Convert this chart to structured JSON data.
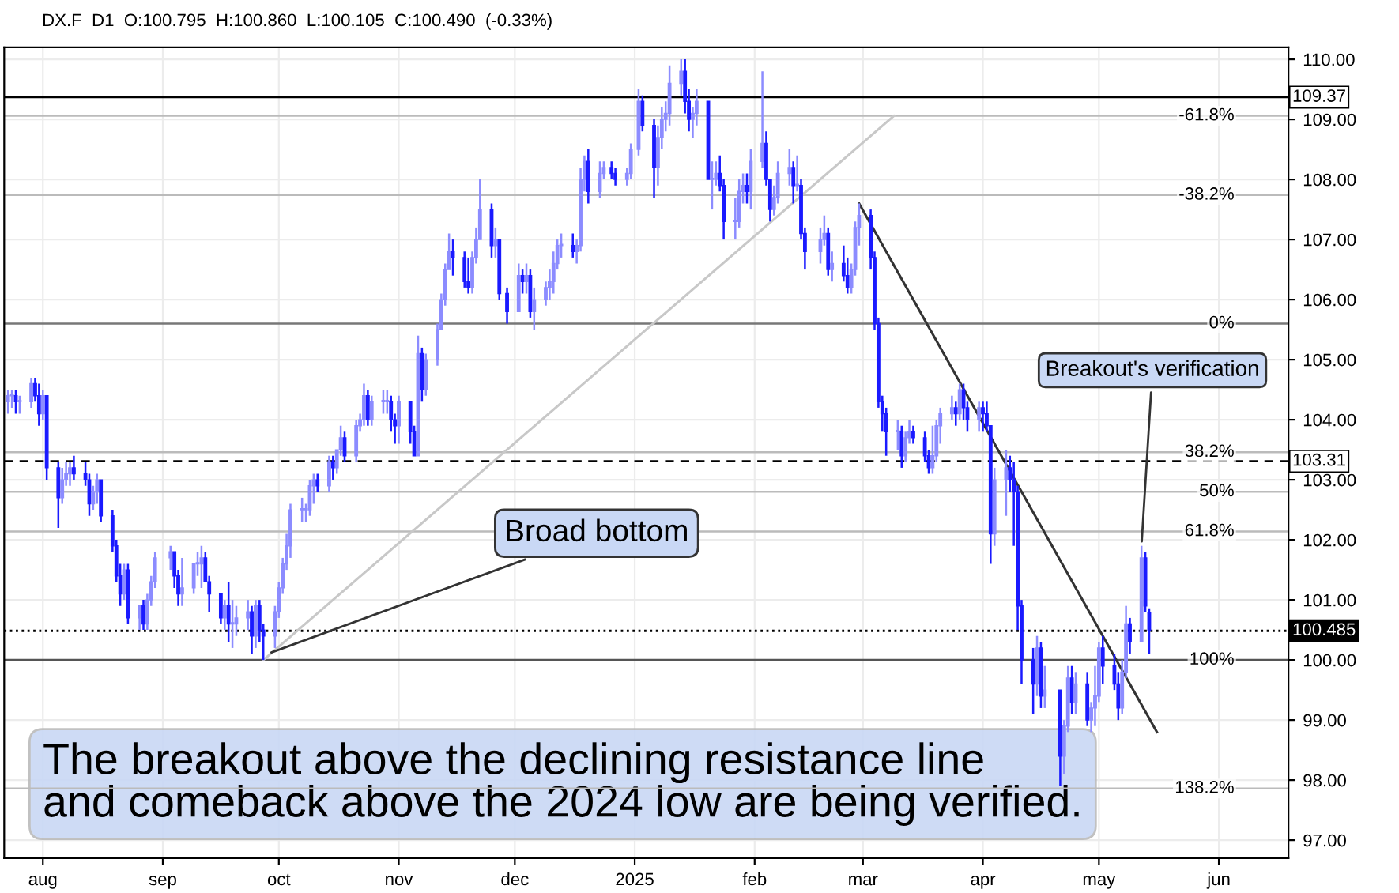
{
  "chart_data": {
    "type": "candlestick",
    "title": "DX.F  D1  O:100.795  H:100.860  L:100.105  C:100.490  (-0.33%)",
    "colors": [
      "#8c8cff",
      "#8c8cff",
      "#1a1aff",
      "#8c8cff",
      "#8c8cff",
      "#1a1aff",
      "#1a1aff",
      "#8c8cff",
      "#1a1aff",
      "#1a1aff",
      "#8c8cff",
      "#8c8cff",
      "#8c8cff",
      "#1a1aff",
      "#1a1aff",
      "#1a1aff",
      "#8c8cff",
      "#8c8cff",
      "#1a1aff",
      "#1a1aff",
      "#1a1aff",
      "#1a1aff",
      "#8c8cff",
      "#1a1aff",
      "#8c8cff",
      "#1a1aff",
      "#8c8cff",
      "#8c8cff",
      "#8c8cff",
      "#8c8cff",
      "#1a1aff",
      "#1a1aff",
      "#8c8cff",
      "#8c8cff",
      "#8c8cff",
      "#8c8cff",
      "#1a1aff",
      "#1a1aff",
      "#1a1aff",
      "#8c8cff",
      "#1a1aff",
      "#8c8cff",
      "#8c8cff",
      "#8c8cff",
      "#1a1aff",
      "#8c8cff",
      "#1a1aff",
      "#1a1aff",
      "#8c8cff",
      "#8c8cff",
      "#8c8cff",
      "#8c8cff",
      "#8c8cff",
      "#8c8cff",
      "#8c8cff",
      "#8c8cff",
      "#8c8cff",
      "#1a1aff",
      "#8c8cff",
      "#1a1aff",
      "#8c8cff",
      "#8c8cff",
      "#1a1aff",
      "#8c8cff",
      "#8c8cff",
      "#8c8cff",
      "#1a1aff",
      "#8c8cff",
      "#8c8cff",
      "#8c8cff",
      "#1a1aff",
      "#1a1aff",
      "#8c8cff",
      "#1a1aff",
      "#1a1aff",
      "#8c8cff",
      "#1a1aff",
      "#8c8cff",
      "#8c8cff",
      "#8c8cff",
      "#8c8cff",
      "#8c8cff",
      "#1a1aff",
      "#1a1aff",
      "#1a1aff",
      "#8c8cff",
      "#8c8cff",
      "#8c8cff",
      "#1a1aff",
      "#8c8cff",
      "#1a1aff",
      "#1a1aff",
      "#8c8cff",
      "#1a1aff",
      "#8c8cff",
      "#1a1aff",
      "#8c8cff",
      "#8c8cff",
      "#8c8cff",
      "#8c8cff",
      "#8c8cff",
      "#8c8cff",
      "#1a1aff",
      "#8c8cff",
      "#8c8cff",
      "#8c8cff",
      "#1a1aff",
      "#8c8cff",
      "#8c8cff",
      "#1a1aff",
      "#1a1aff",
      "#8c8cff",
      "#8c8cff",
      "#8c8cff",
      "#1a1aff",
      "#1a1aff",
      "#8c8cff",
      "#8c8cff",
      "#8c8cff",
      "#8c8cff",
      "#8c8cff",
      "#1a1aff",
      "#1a1aff",
      "#8c8cff",
      "#8c8cff",
      "#1a1aff",
      "#8c8cff",
      "#8c8cff",
      "#1a1aff",
      "#1a1aff",
      "#8c8cff",
      "#8c8cff",
      "#8c8cff",
      "#1a1aff",
      "#8c8cff",
      "#8c8cff",
      "#1a1aff",
      "#1a1aff",
      "#8c8cff",
      "#8c8cff",
      "#8c8cff",
      "#1a1aff",
      "#8c8cff",
      "#1a1aff",
      "#1a1aff",
      "#8c8cff",
      "#8c8cff",
      "#1a1aff",
      "#8c8cff",
      "#1a1aff",
      "#1a1aff",
      "#8c8cff",
      "#8c8cff",
      "#8c8cff",
      "#1a1aff",
      "#1a1aff",
      "#1a1aff",
      "#1a1aff",
      "#1a1aff",
      "#8c8cff",
      "#1a1aff",
      "#8c8cff",
      "#8c8cff",
      "#1a1aff",
      "#1a1aff",
      "#1a1aff",
      "#8c8cff",
      "#8c8cff",
      "#8c8cff",
      "#8c8cff",
      "#1a1aff",
      "#8c8cff",
      "#1a1aff",
      "#1a1aff",
      "#8c8cff",
      "#1a1aff",
      "#1a1aff",
      "#1a1aff",
      "#8c8cff",
      "#8c8cff",
      "#1a1aff",
      "#1a1aff",
      "#1a1aff",
      "#1a1aff",
      "#1a1aff",
      "#8c8cff",
      "#1a1aff",
      "#8c8cff",
      "#1a1aff",
      "#8c8cff",
      "#8c8cff",
      "#1a1aff",
      "#8c8cff",
      "#1a1aff",
      "#8c8cff",
      "#8c8cff",
      "#8c8cff",
      "#1a1aff",
      "#1a1aff",
      "#1a1aff",
      "#8c8cff",
      "#8c8cff",
      "#1a1aff",
      "#8c8cff",
      "#1a1aff",
      "#1a1aff"
    ],
    "x": [
      "2024-07-23",
      "2024-07-24",
      "2024-07-25",
      "2024-07-26",
      "2024-07-29",
      "2024-07-30",
      "2024-07-31",
      "2024-08-01",
      "2024-08-02",
      "2024-08-05",
      "2024-08-06",
      "2024-08-07",
      "2024-08-08",
      "2024-08-09",
      "2024-08-12",
      "2024-08-13",
      "2024-08-14",
      "2024-08-15",
      "2024-08-16",
      "2024-08-19",
      "2024-08-20",
      "2024-08-21",
      "2024-08-22",
      "2024-08-23",
      "2024-08-26",
      "2024-08-27",
      "2024-08-28",
      "2024-08-29",
      "2024-08-30",
      "2024-09-03",
      "2024-09-04",
      "2024-09-05",
      "2024-09-06",
      "2024-09-09",
      "2024-09-10",
      "2024-09-11",
      "2024-09-12",
      "2024-09-13",
      "2024-09-16",
      "2024-09-17",
      "2024-09-18",
      "2024-09-19",
      "2024-09-20",
      "2024-09-23",
      "2024-09-24",
      "2024-09-25",
      "2024-09-26",
      "2024-09-27",
      "2024-09-30",
      "2024-10-01",
      "2024-10-02",
      "2024-10-03",
      "2024-10-04",
      "2024-10-07",
      "2024-10-08",
      "2024-10-09",
      "2024-10-10",
      "2024-10-11",
      "2024-10-14",
      "2024-10-15",
      "2024-10-16",
      "2024-10-17",
      "2024-10-18",
      "2024-10-21",
      "2024-10-22",
      "2024-10-23",
      "2024-10-24",
      "2024-10-25",
      "2024-10-28",
      "2024-10-29",
      "2024-10-30",
      "2024-10-31",
      "2024-11-01",
      "2024-11-04",
      "2024-11-05",
      "2024-11-06",
      "2024-11-07",
      "2024-11-08",
      "2024-11-11",
      "2024-11-12",
      "2024-11-13",
      "2024-11-14",
      "2024-11-15",
      "2024-11-18",
      "2024-11-19",
      "2024-11-20",
      "2024-11-21",
      "2024-11-22",
      "2024-11-25",
      "2024-11-26",
      "2024-11-27",
      "2024-11-29",
      "2024-12-02",
      "2024-12-03",
      "2024-12-04",
      "2024-12-05",
      "2024-12-06",
      "2024-12-09",
      "2024-12-10",
      "2024-12-11",
      "2024-12-12",
      "2024-12-13",
      "2024-12-16",
      "2024-12-17",
      "2024-12-18",
      "2024-12-19",
      "2024-12-20",
      "2024-12-23",
      "2024-12-24",
      "2024-12-26",
      "2024-12-27",
      "2024-12-30",
      "2024-12-31",
      "2025-01-02",
      "2025-01-03",
      "2025-01-06",
      "2025-01-07",
      "2025-01-08",
      "2025-01-09",
      "2025-01-10",
      "2025-01-13",
      "2025-01-14",
      "2025-01-15",
      "2025-01-16",
      "2025-01-17",
      "2025-01-20",
      "2025-01-21",
      "2025-01-22",
      "2025-01-23",
      "2025-01-24",
      "2025-01-27",
      "2025-01-28",
      "2025-01-29",
      "2025-01-30",
      "2025-01-31",
      "2025-02-03",
      "2025-02-04",
      "2025-02-05",
      "2025-02-06",
      "2025-02-07",
      "2025-02-10",
      "2025-02-11",
      "2025-02-12",
      "2025-02-13",
      "2025-02-14",
      "2025-02-18",
      "2025-02-19",
      "2025-02-20",
      "2025-02-21",
      "2025-02-24",
      "2025-02-25",
      "2025-02-26",
      "2025-02-27",
      "2025-02-28",
      "2025-03-03",
      "2025-03-04",
      "2025-03-05",
      "2025-03-06",
      "2025-03-07",
      "2025-03-10",
      "2025-03-11",
      "2025-03-12",
      "2025-03-13",
      "2025-03-14",
      "2025-03-17",
      "2025-03-18",
      "2025-03-19",
      "2025-03-20",
      "2025-03-21",
      "2025-03-24",
      "2025-03-25",
      "2025-03-26",
      "2025-03-27",
      "2025-03-28",
      "2025-03-31",
      "2025-04-01",
      "2025-04-02",
      "2025-04-03",
      "2025-04-04",
      "2025-04-07",
      "2025-04-08",
      "2025-04-09",
      "2025-04-10",
      "2025-04-11",
      "2025-04-14",
      "2025-04-15",
      "2025-04-16",
      "2025-04-17",
      "2025-04-21",
      "2025-04-22",
      "2025-04-23",
      "2025-04-24",
      "2025-04-25",
      "2025-04-28",
      "2025-04-29",
      "2025-04-30",
      "2025-05-01",
      "2025-05-02",
      "2025-05-05",
      "2025-05-06",
      "2025-05-07",
      "2025-05-08",
      "2025-05-09",
      "2025-05-12",
      "2025-05-13",
      "2025-05-14"
    ],
    "ohlc": [
      [
        104.3,
        104.5,
        104.1,
        104.4
      ],
      [
        104.4,
        104.5,
        104.2,
        104.4
      ],
      [
        104.4,
        104.5,
        104.1,
        104.3
      ],
      [
        104.3,
        104.4,
        104.1,
        104.3
      ],
      [
        104.3,
        104.7,
        104.2,
        104.6
      ],
      [
        104.6,
        104.7,
        104.3,
        104.4
      ],
      [
        104.4,
        104.6,
        103.9,
        104.1
      ],
      [
        104.1,
        104.5,
        104.0,
        104.4
      ],
      [
        104.4,
        104.4,
        103.0,
        103.2
      ],
      [
        103.2,
        103.3,
        102.2,
        102.7
      ],
      [
        102.7,
        103.2,
        102.6,
        103.0
      ],
      [
        103.0,
        103.3,
        102.9,
        103.1
      ],
      [
        103.1,
        103.3,
        102.9,
        103.2
      ],
      [
        103.2,
        103.4,
        103.0,
        103.1
      ],
      [
        103.1,
        103.3,
        102.9,
        103.0
      ],
      [
        103.0,
        103.1,
        102.4,
        102.6
      ],
      [
        102.6,
        102.9,
        102.5,
        102.8
      ],
      [
        102.8,
        103.1,
        102.6,
        103.0
      ],
      [
        103.0,
        103.0,
        102.3,
        102.4
      ],
      [
        102.4,
        102.5,
        101.8,
        101.9
      ],
      [
        101.9,
        102.0,
        101.3,
        101.4
      ],
      [
        101.4,
        101.6,
        100.9,
        101.1
      ],
      [
        101.1,
        101.6,
        101.0,
        101.5
      ],
      [
        101.5,
        101.6,
        100.6,
        100.7
      ],
      [
        100.7,
        100.9,
        100.5,
        100.9
      ],
      [
        100.9,
        101.0,
        100.5,
        100.6
      ],
      [
        100.6,
        101.1,
        100.5,
        101.0
      ],
      [
        101.0,
        101.4,
        100.9,
        101.3
      ],
      [
        101.3,
        101.8,
        101.2,
        101.7
      ],
      [
        101.7,
        101.9,
        101.5,
        101.8
      ],
      [
        101.8,
        101.8,
        101.2,
        101.4
      ],
      [
        101.4,
        101.5,
        100.9,
        101.1
      ],
      [
        101.1,
        101.7,
        100.9,
        101.2
      ],
      [
        101.2,
        101.6,
        101.1,
        101.6
      ],
      [
        101.6,
        101.8,
        101.4,
        101.6
      ],
      [
        101.6,
        101.9,
        101.2,
        101.7
      ],
      [
        101.7,
        101.8,
        101.3,
        101.3
      ],
      [
        101.3,
        101.4,
        100.8,
        101.1
      ],
      [
        101.1,
        101.1,
        100.6,
        100.7
      ],
      [
        100.7,
        101.0,
        100.5,
        100.9
      ],
      [
        100.9,
        101.3,
        100.3,
        100.6
      ],
      [
        100.6,
        101.0,
        100.2,
        100.6
      ],
      [
        100.6,
        100.9,
        100.4,
        100.7
      ],
      [
        100.7,
        101.0,
        100.5,
        100.8
      ],
      [
        100.8,
        100.9,
        100.1,
        100.4
      ],
      [
        100.4,
        101.0,
        100.2,
        100.9
      ],
      [
        100.9,
        101.0,
        100.3,
        100.5
      ],
      [
        100.5,
        100.6,
        100.0,
        100.4
      ],
      [
        100.4,
        100.9,
        100.2,
        100.8
      ],
      [
        100.8,
        101.3,
        100.7,
        101.2
      ],
      [
        101.2,
        101.7,
        101.1,
        101.6
      ],
      [
        101.6,
        102.1,
        101.5,
        101.9
      ],
      [
        101.9,
        102.6,
        101.7,
        102.5
      ],
      [
        102.5,
        102.7,
        102.3,
        102.5
      ],
      [
        102.5,
        102.6,
        102.3,
        102.5
      ],
      [
        102.5,
        103.0,
        102.4,
        102.9
      ],
      [
        102.9,
        103.1,
        102.6,
        103.0
      ],
      [
        103.0,
        103.1,
        102.8,
        102.9
      ],
      [
        102.9,
        103.4,
        102.8,
        103.3
      ],
      [
        103.3,
        103.4,
        103.0,
        103.2
      ],
      [
        103.2,
        103.5,
        103.1,
        103.5
      ],
      [
        103.5,
        103.9,
        103.4,
        103.7
      ],
      [
        103.7,
        103.8,
        103.3,
        103.4
      ],
      [
        103.4,
        104.0,
        103.3,
        103.9
      ],
      [
        103.9,
        104.1,
        103.8,
        104.0
      ],
      [
        104.0,
        104.6,
        103.9,
        104.4
      ],
      [
        104.4,
        104.5,
        103.9,
        104.0
      ],
      [
        104.0,
        104.4,
        103.9,
        104.3
      ],
      [
        104.3,
        104.5,
        104.1,
        104.3
      ],
      [
        104.3,
        104.5,
        104.1,
        104.3
      ],
      [
        104.3,
        104.4,
        103.8,
        104.0
      ],
      [
        104.0,
        104.1,
        103.6,
        103.9
      ],
      [
        103.9,
        104.4,
        103.6,
        104.3
      ],
      [
        104.3,
        104.3,
        103.6,
        103.8
      ],
      [
        103.8,
        103.9,
        103.4,
        103.4
      ],
      [
        103.4,
        105.4,
        103.4,
        105.1
      ],
      [
        105.1,
        105.2,
        104.3,
        104.5
      ],
      [
        104.5,
        105.1,
        104.4,
        105.0
      ],
      [
        105.0,
        105.6,
        104.9,
        105.5
      ],
      [
        105.5,
        106.1,
        105.5,
        106.0
      ],
      [
        106.0,
        106.6,
        105.9,
        106.5
      ],
      [
        106.5,
        107.1,
        106.5,
        106.8
      ],
      [
        106.8,
        107.0,
        106.4,
        106.7
      ],
      [
        106.7,
        106.8,
        106.2,
        106.3
      ],
      [
        106.3,
        106.7,
        106.1,
        106.2
      ],
      [
        106.2,
        106.8,
        106.1,
        106.7
      ],
      [
        106.7,
        107.2,
        106.6,
        107.0
      ],
      [
        107.0,
        108.0,
        107.0,
        107.5
      ],
      [
        107.5,
        107.6,
        106.7,
        106.9
      ],
      [
        106.9,
        107.2,
        106.7,
        107.0
      ],
      [
        107.0,
        107.0,
        106.0,
        106.1
      ],
      [
        106.1,
        106.2,
        105.6,
        105.8
      ],
      [
        105.8,
        106.6,
        105.8,
        106.4
      ],
      [
        106.4,
        106.5,
        106.1,
        106.3
      ],
      [
        106.3,
        106.6,
        106.1,
        106.4
      ],
      [
        106.4,
        106.5,
        105.7,
        105.8
      ],
      [
        105.8,
        106.2,
        105.5,
        106.0
      ],
      [
        106.0,
        106.3,
        105.9,
        106.2
      ],
      [
        106.2,
        106.5,
        106.0,
        106.3
      ],
      [
        106.3,
        106.8,
        106.1,
        106.6
      ],
      [
        106.6,
        107.0,
        106.5,
        106.9
      ],
      [
        106.9,
        107.1,
        106.7,
        106.9
      ],
      [
        106.9,
        107.1,
        106.7,
        106.8
      ],
      [
        106.8,
        107.0,
        106.6,
        106.9
      ],
      [
        106.9,
        108.2,
        106.8,
        108.0
      ],
      [
        108.0,
        108.4,
        107.8,
        108.3
      ],
      [
        108.3,
        108.5,
        107.6,
        107.8
      ],
      [
        107.8,
        108.3,
        107.7,
        108.1
      ],
      [
        108.1,
        108.3,
        108.0,
        108.2
      ],
      [
        108.2,
        108.3,
        108.0,
        108.1
      ],
      [
        108.1,
        108.2,
        107.9,
        108.0
      ],
      [
        108.0,
        108.2,
        107.9,
        108.1
      ],
      [
        108.1,
        108.6,
        108.0,
        108.5
      ],
      [
        108.5,
        109.5,
        108.4,
        109.3
      ],
      [
        109.3,
        109.4,
        108.8,
        108.9
      ],
      [
        108.9,
        109.0,
        107.7,
        108.2
      ],
      [
        108.2,
        108.9,
        107.9,
        108.7
      ],
      [
        108.7,
        109.2,
        108.5,
        109.0
      ],
      [
        109.0,
        109.3,
        108.8,
        109.1
      ],
      [
        109.1,
        109.9,
        108.9,
        109.6
      ],
      [
        109.6,
        110.0,
        109.4,
        109.8
      ],
      [
        109.8,
        110.0,
        109.1,
        109.3
      ],
      [
        109.3,
        109.5,
        108.8,
        109.0
      ],
      [
        109.0,
        109.2,
        108.7,
        109.1
      ],
      [
        109.1,
        109.5,
        108.9,
        109.3
      ],
      [
        109.3,
        109.3,
        108.0,
        108.0
      ],
      [
        108.0,
        108.3,
        107.5,
        108.0
      ],
      [
        108.0,
        108.3,
        107.9,
        108.1
      ],
      [
        108.1,
        108.4,
        107.8,
        107.9
      ],
      [
        107.9,
        108.0,
        107.0,
        107.3
      ],
      [
        107.3,
        107.7,
        107.0,
        107.3
      ],
      [
        107.3,
        108.0,
        107.2,
        107.8
      ],
      [
        107.8,
        108.1,
        107.6,
        107.9
      ],
      [
        107.9,
        108.1,
        107.6,
        107.8
      ],
      [
        107.8,
        108.5,
        107.5,
        108.3
      ],
      [
        108.3,
        109.8,
        108.2,
        108.6
      ],
      [
        108.6,
        108.8,
        107.9,
        108.0
      ],
      [
        108.0,
        108.0,
        107.3,
        107.5
      ],
      [
        107.5,
        107.9,
        107.4,
        107.7
      ],
      [
        107.7,
        108.3,
        107.6,
        108.1
      ],
      [
        108.1,
        108.5,
        107.9,
        108.2
      ],
      [
        108.2,
        108.3,
        107.6,
        107.9
      ],
      [
        107.9,
        108.4,
        107.8,
        107.9
      ],
      [
        107.9,
        108.0,
        107.0,
        107.1
      ],
      [
        107.1,
        107.2,
        106.5,
        106.8
      ],
      [
        106.8,
        107.2,
        106.6,
        107.0
      ],
      [
        107.0,
        107.4,
        106.9,
        107.1
      ],
      [
        107.1,
        107.2,
        106.4,
        106.5
      ],
      [
        106.5,
        106.8,
        106.3,
        106.6
      ],
      [
        106.6,
        106.9,
        106.3,
        106.4
      ],
      [
        106.4,
        106.7,
        106.1,
        106.2
      ],
      [
        106.2,
        106.6,
        106.1,
        106.5
      ],
      [
        106.5,
        107.3,
        106.4,
        107.2
      ],
      [
        107.2,
        107.6,
        106.9,
        107.4
      ],
      [
        107.4,
        107.5,
        106.5,
        106.7
      ],
      [
        106.7,
        106.8,
        105.5,
        105.6
      ],
      [
        105.6,
        105.7,
        104.2,
        104.3
      ],
      [
        104.3,
        104.4,
        103.8,
        104.1
      ],
      [
        104.1,
        104.2,
        103.4,
        103.8
      ],
      [
        103.8,
        104.0,
        103.5,
        103.8
      ],
      [
        103.8,
        103.9,
        103.2,
        103.4
      ],
      [
        103.4,
        103.8,
        103.3,
        103.7
      ],
      [
        103.7,
        104.0,
        103.6,
        103.8
      ],
      [
        103.8,
        103.9,
        103.6,
        103.7
      ],
      [
        103.7,
        103.8,
        103.3,
        103.4
      ],
      [
        103.4,
        103.5,
        103.1,
        103.2
      ],
      [
        103.2,
        103.9,
        103.1,
        103.4
      ],
      [
        103.4,
        104.0,
        103.3,
        103.9
      ],
      [
        103.9,
        104.2,
        103.6,
        104.1
      ],
      [
        104.1,
        104.4,
        104.0,
        104.2
      ],
      [
        104.2,
        104.3,
        103.9,
        104.1
      ],
      [
        104.1,
        104.6,
        104.0,
        104.5
      ],
      [
        104.5,
        104.6,
        104.0,
        104.2
      ],
      [
        104.2,
        104.3,
        103.8,
        104.0
      ],
      [
        104.0,
        104.3,
        103.8,
        104.2
      ],
      [
        104.2,
        104.3,
        103.8,
        104.1
      ],
      [
        104.1,
        104.3,
        103.8,
        103.9
      ],
      [
        103.9,
        103.9,
        101.6,
        102.1
      ],
      [
        102.1,
        103.2,
        101.9,
        103.0
      ],
      [
        103.0,
        103.5,
        102.4,
        103.2
      ],
      [
        103.2,
        103.4,
        102.8,
        103.0
      ],
      [
        103.0,
        103.3,
        101.9,
        102.8
      ],
      [
        102.8,
        102.9,
        100.5,
        100.9
      ],
      [
        100.9,
        101.0,
        99.6,
        100.0
      ],
      [
        100.0,
        100.2,
        99.1,
        99.6
      ],
      [
        99.6,
        100.4,
        99.4,
        100.2
      ],
      [
        100.2,
        100.3,
        99.2,
        99.4
      ],
      [
        99.4,
        99.9,
        99.2,
        99.5
      ],
      [
        99.5,
        99.5,
        97.9,
        98.4
      ],
      [
        98.4,
        99.0,
        98.1,
        98.9
      ],
      [
        98.9,
        99.9,
        98.8,
        99.7
      ],
      [
        99.7,
        99.9,
        99.1,
        99.3
      ],
      [
        99.3,
        99.8,
        99.1,
        99.6
      ],
      [
        99.6,
        99.8,
        98.9,
        99.0
      ],
      [
        99.0,
        99.3,
        98.8,
        99.2
      ],
      [
        99.2,
        99.9,
        98.9,
        99.4
      ],
      [
        99.4,
        100.3,
        99.3,
        100.2
      ],
      [
        100.2,
        100.4,
        99.6,
        99.9
      ],
      [
        99.9,
        100.1,
        99.5,
        99.6
      ],
      [
        99.6,
        99.8,
        99.0,
        99.2
      ],
      [
        99.2,
        100.0,
        99.1,
        99.8
      ],
      [
        99.8,
        100.9,
        99.7,
        100.6
      ],
      [
        100.6,
        100.7,
        100.1,
        100.3
      ],
      [
        100.3,
        101.9,
        100.3,
        101.7
      ],
      [
        101.7,
        101.8,
        100.8,
        100.9
      ],
      [
        100.795,
        100.86,
        100.105,
        100.49
      ]
    ],
    "series": [
      {
        "type": "line",
        "color": "#c8c8c8",
        "x": [
          "2024-09-27",
          "2025-03-09"
        ],
        "values": [
          100.0,
          109.06
        ]
      },
      {
        "type": "line",
        "color": "#333333",
        "x": [
          "2025-02-28",
          "2025-05-16"
        ],
        "values": [
          107.6,
          98.8
        ]
      }
    ],
    "xlim": [
      "2024-07-22",
      "2025-06-19"
    ],
    "xticks": [
      {
        "value": "2024-08-01",
        "label": "aug"
      },
      {
        "value": "2024-09-01",
        "label": "sep"
      },
      {
        "value": "2024-10-01",
        "label": "oct"
      },
      {
        "value": "2024-11-01",
        "label": "nov"
      },
      {
        "value": "2024-12-01",
        "label": "dec"
      },
      {
        "value": "2025-01-01",
        "label": "2025"
      },
      {
        "value": "2025-02-01",
        "label": "feb"
      },
      {
        "value": "2025-03-01",
        "label": "mar"
      },
      {
        "value": "2025-04-01",
        "label": "apr"
      },
      {
        "value": "2025-05-01",
        "label": "may"
      },
      {
        "value": "2025-06-01",
        "label": "jun"
      }
    ],
    "ylim": [
      96.7,
      110.2
    ],
    "yticks": [
      {
        "value": 97,
        "label": "97.00"
      },
      {
        "value": 98,
        "label": "98.00"
      },
      {
        "value": 99,
        "label": "99.00"
      },
      {
        "value": 100,
        "label": "100.00"
      },
      {
        "value": 101,
        "label": "101.00"
      },
      {
        "value": 102,
        "label": "102.00"
      },
      {
        "value": 103,
        "label": "103.00"
      },
      {
        "value": 104,
        "label": "104.00"
      },
      {
        "value": 105,
        "label": "105.00"
      },
      {
        "value": 106,
        "label": "106.00"
      },
      {
        "value": 107,
        "label": "107.00"
      },
      {
        "value": 108,
        "label": "108.00"
      },
      {
        "value": 109,
        "label": "109.00"
      },
      {
        "value": 110,
        "label": "110.00"
      }
    ],
    "grid": true,
    "ref_lines": [
      {
        "axis": "y",
        "value": 109.37,
        "label": "109.37",
        "color": "#000000",
        "line_style": "solid"
      },
      {
        "axis": "y",
        "value": 103.31,
        "label": "103.31",
        "color": "#000000",
        "line_style": "dashed"
      },
      {
        "axis": "y",
        "value": 100.485,
        "label": "100.485",
        "color": "#000000",
        "line_style": "dotted"
      },
      {
        "axis": "y",
        "value": 109.06,
        "color": "#bbbbbb",
        "line_style": "solid"
      },
      {
        "axis": "y",
        "value": 107.74,
        "color": "#bbbbbb",
        "line_style": "solid"
      },
      {
        "axis": "y",
        "value": 105.6,
        "color": "#777777",
        "line_style": "solid"
      },
      {
        "axis": "y",
        "value": 103.46,
        "color": "#bbbbbb",
        "line_style": "solid"
      },
      {
        "axis": "y",
        "value": 102.8,
        "color": "#bbbbbb",
        "line_style": "solid"
      },
      {
        "axis": "y",
        "value": 102.14,
        "color": "#bbbbbb",
        "line_style": "solid"
      },
      {
        "axis": "y",
        "value": 100.0,
        "color": "#555555",
        "line_style": "solid"
      },
      {
        "axis": "y",
        "value": 97.86,
        "color": "#bbbbbb",
        "line_style": "solid"
      }
    ],
    "annotations": [
      {
        "text": "Broad bottom",
        "x": "2024-09-28",
        "y": 100.1
      },
      {
        "text": "Breakout's verification",
        "x": "2025-05-12",
        "y": 101.9
      },
      {
        "text": "-61.8%",
        "x": "2025-06-05",
        "y": 109.06
      },
      {
        "text": "-38.2%",
        "x": "2025-06-05",
        "y": 107.74
      },
      {
        "text": "0%",
        "x": "2025-06-05",
        "y": 105.6
      },
      {
        "text": "38.2%",
        "x": "2025-06-05",
        "y": 103.46
      },
      {
        "text": "50%",
        "x": "2025-06-05",
        "y": 102.8
      },
      {
        "text": "61.8%",
        "x": "2025-06-05",
        "y": 102.14
      },
      {
        "text": "100%",
        "x": "2025-06-05",
        "y": 100.0
      },
      {
        "text": "138.2%",
        "x": "2025-06-05",
        "y": 97.86
      },
      "The breakout above the declining resistance line\nand comeback above the 2024 low are being verified."
    ]
  }
}
